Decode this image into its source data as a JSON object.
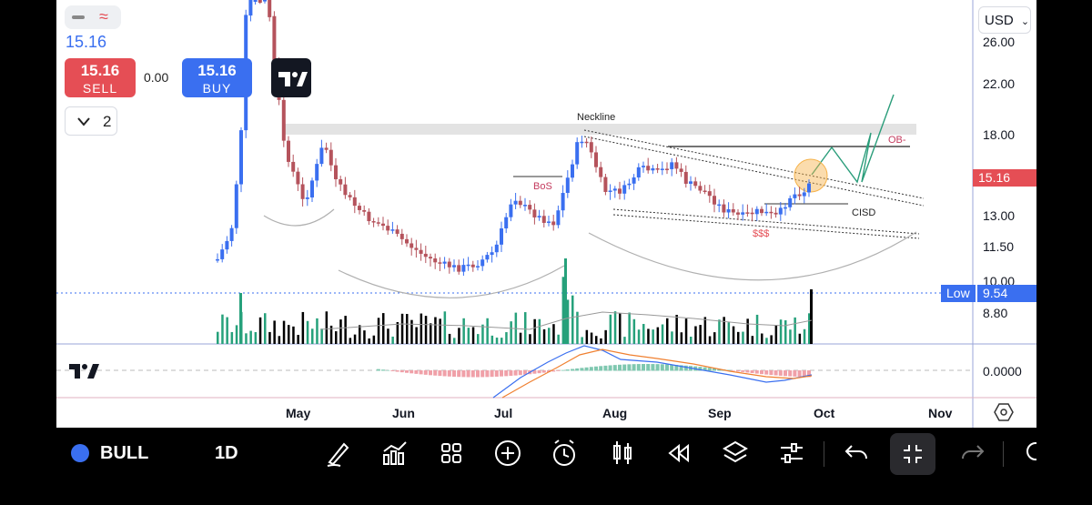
{
  "header": {
    "last_price": "15.16",
    "sell": {
      "price": "15.16",
      "label": "SELL"
    },
    "buy": {
      "price": "15.16",
      "label": "BUY"
    },
    "spread": "0.00",
    "collapse_count": "2",
    "currency": "USD"
  },
  "price_axis": [
    "26.00",
    "22.00",
    "18.00",
    "15.16",
    "13.00",
    "11.50",
    "10.00",
    "9.54",
    "8.80"
  ],
  "price_tags": {
    "current": "15.16",
    "low_label": "Low",
    "low_value": "9.54"
  },
  "macd_axis": "0.0000",
  "time_axis": [
    "May",
    "Jun",
    "Jul",
    "Aug",
    "Sep",
    "Oct",
    "Nov"
  ],
  "annotations": {
    "neckline": "Neckline",
    "bos": "BoS",
    "cisd": "CISD",
    "ob": "OB-",
    "liquidity": "$$$"
  },
  "toolbar": {
    "symbol": "BULL",
    "interval": "1D"
  },
  "colors": {
    "up": "#3a6ff0",
    "down": "#b5535c",
    "volume_up": "#26a17b",
    "volume_down": "#000000",
    "sell": "#e54e55",
    "buy": "#3a6ff0",
    "neckline_band": "#e3e3e3",
    "projection": "#2a9d7a",
    "ob_circle": "#f6b24a"
  },
  "icons": [
    "pencil-icon",
    "indicators-icon",
    "layouts-icon",
    "add-icon",
    "alert-icon",
    "candles-icon",
    "replay-icon",
    "layers-icon",
    "settings-icon",
    "undo-icon",
    "fullscreen-exit-icon",
    "redo-icon"
  ]
}
